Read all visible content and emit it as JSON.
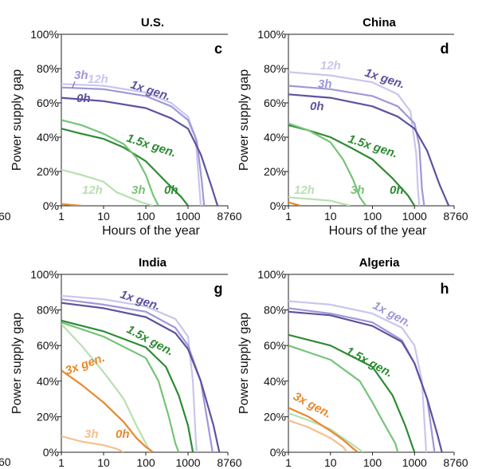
{
  "chart_data": [
    {
      "type": "line",
      "title": "U.S.",
      "panel_letter": "c",
      "xlabel": "Hours of the year",
      "ylabel": "Power supply gap",
      "x_scale": "log",
      "xlim": [
        1,
        8760
      ],
      "ylim": [
        0,
        100
      ],
      "x_ticks": [
        "1",
        "10",
        "100",
        "1000",
        "8760"
      ],
      "y_ticks": [
        "0%",
        "20%",
        "40%",
        "60%",
        "80%",
        "100%"
      ],
      "grid": false,
      "series": [
        {
          "name": "1x gen. 12h",
          "color": "#c9c6ec",
          "points": [
            [
              1,
              71
            ],
            [
              10,
              70
            ],
            [
              100,
              66
            ],
            [
              400,
              60
            ],
            [
              1000,
              52
            ],
            [
              1500,
              40
            ],
            [
              1800,
              15
            ],
            [
              2000,
              0
            ]
          ]
        },
        {
          "name": "1x gen. 3h",
          "color": "#9e98d8",
          "points": [
            [
              1,
              69
            ],
            [
              10,
              68
            ],
            [
              100,
              64
            ],
            [
              400,
              58
            ],
            [
              1000,
              50
            ],
            [
              1600,
              38
            ],
            [
              2100,
              15
            ],
            [
              2400,
              0
            ]
          ]
        },
        {
          "name": "1x gen. 0h",
          "color": "#5d539f",
          "points": [
            [
              1,
              63
            ],
            [
              10,
              61
            ],
            [
              100,
              57
            ],
            [
              400,
              51
            ],
            [
              1000,
              45
            ],
            [
              2000,
              30
            ],
            [
              3500,
              12
            ],
            [
              5000,
              0
            ]
          ]
        },
        {
          "name": "1.5x gen. 0h",
          "color": "#2e8b34",
          "points": [
            [
              1,
              45
            ],
            [
              3,
              42
            ],
            [
              10,
              39
            ],
            [
              30,
              34
            ],
            [
              100,
              26
            ],
            [
              300,
              14
            ],
            [
              700,
              5
            ],
            [
              1000,
              0
            ]
          ]
        },
        {
          "name": "1.5x gen. 3h",
          "color": "#76c477",
          "points": [
            [
              1,
              50
            ],
            [
              3,
              47
            ],
            [
              10,
              42
            ],
            [
              30,
              36
            ],
            [
              60,
              28
            ],
            [
              100,
              18
            ],
            [
              150,
              6
            ],
            [
              200,
              0
            ]
          ]
        },
        {
          "name": "1.5x gen. 12h",
          "color": "#b8e0b0",
          "points": [
            [
              1,
              21
            ],
            [
              3,
              18
            ],
            [
              10,
              14
            ],
            [
              20,
              8
            ],
            [
              40,
              5
            ],
            [
              80,
              2
            ],
            [
              150,
              0
            ]
          ]
        },
        {
          "name": "3x gen.",
          "color": "#e8892c",
          "points": [
            [
              1,
              1
            ],
            [
              3,
              0
            ]
          ]
        }
      ],
      "annotations": [
        "3h",
        "12h",
        "1x gen.",
        "0h",
        "1.5x gen.",
        "12h",
        "3h",
        "0h"
      ]
    },
    {
      "type": "line",
      "title": "China",
      "panel_letter": "d",
      "xlabel": "Hours of the year",
      "ylabel": "Power supply gap",
      "x_scale": "log",
      "xlim": [
        1,
        8760
      ],
      "ylim": [
        0,
        100
      ],
      "x_ticks": [
        "1",
        "10",
        "100",
        "1000",
        "8760"
      ],
      "y_ticks": [
        "0%",
        "20%",
        "40%",
        "60%",
        "80%",
        "100%"
      ],
      "grid": false,
      "series": [
        {
          "name": "1x gen. 12h",
          "color": "#c9c6ec",
          "points": [
            [
              1,
              78
            ],
            [
              10,
              76
            ],
            [
              100,
              72
            ],
            [
              400,
              65
            ],
            [
              800,
              55
            ],
            [
              1100,
              30
            ],
            [
              1200,
              10
            ],
            [
              1300,
              0
            ]
          ]
        },
        {
          "name": "1x gen. 3h",
          "color": "#9e98d8",
          "points": [
            [
              1,
              70
            ],
            [
              10,
              68
            ],
            [
              100,
              64
            ],
            [
              400,
              58
            ],
            [
              1000,
              48
            ],
            [
              1300,
              35
            ],
            [
              1500,
              10
            ],
            [
              1700,
              0
            ]
          ]
        },
        {
          "name": "1x gen. 0h",
          "color": "#5d539f",
          "points": [
            [
              1,
              65
            ],
            [
              10,
              63
            ],
            [
              100,
              58
            ],
            [
              400,
              52
            ],
            [
              1000,
              45
            ],
            [
              2000,
              32
            ],
            [
              4000,
              12
            ],
            [
              6500,
              0
            ]
          ]
        },
        {
          "name": "1.5x gen. 0h",
          "color": "#2e8b34",
          "points": [
            [
              1,
              47
            ],
            [
              3,
              44
            ],
            [
              10,
              40
            ],
            [
              30,
              34
            ],
            [
              100,
              27
            ],
            [
              300,
              16
            ],
            [
              700,
              6
            ],
            [
              1000,
              0
            ]
          ]
        },
        {
          "name": "1.5x gen. 3h",
          "color": "#76c477",
          "points": [
            [
              1,
              48
            ],
            [
              3,
              44
            ],
            [
              10,
              37
            ],
            [
              20,
              27
            ],
            [
              35,
              15
            ],
            [
              50,
              5
            ],
            [
              70,
              0
            ]
          ]
        },
        {
          "name": "1.5x gen. 12h",
          "color": "#b8e0b0",
          "points": [
            [
              1,
              5
            ],
            [
              3,
              4
            ],
            [
              10,
              3
            ],
            [
              20,
              1
            ],
            [
              30,
              0
            ]
          ]
        },
        {
          "name": "3x gen.",
          "color": "#e8892c",
          "points": [
            [
              1,
              2
            ],
            [
              2,
              0
            ]
          ]
        }
      ],
      "annotations": [
        "12h",
        "3h",
        "1x gen.",
        "0h",
        "1.5x gen.",
        "12h",
        "3h",
        "0h"
      ]
    },
    {
      "type": "line",
      "title": "India",
      "panel_letter": "g",
      "xlabel": "Hours of the year",
      "ylabel": "Power supply gap",
      "x_scale": "log",
      "xlim": [
        1,
        8760
      ],
      "ylim": [
        0,
        100
      ],
      "x_ticks": [
        "1",
        "10",
        "100",
        "1000",
        "8760"
      ],
      "y_ticks": [
        "0%",
        "20%",
        "40%",
        "60%",
        "80%",
        "100%"
      ],
      "grid": false,
      "series": [
        {
          "name": "1x gen. 12h",
          "color": "#c9c6ec",
          "points": [
            [
              1,
              88
            ],
            [
              10,
              86
            ],
            [
              100,
              82
            ],
            [
              500,
              75
            ],
            [
              1000,
              65
            ],
            [
              1300,
              40
            ],
            [
              1500,
              10
            ],
            [
              1600,
              0
            ]
          ]
        },
        {
          "name": "1x gen. 3h",
          "color": "#9e98d8",
          "points": [
            [
              1,
              86
            ],
            [
              10,
              83
            ],
            [
              100,
              79
            ],
            [
              500,
              70
            ],
            [
              1000,
              60
            ],
            [
              2000,
              40
            ],
            [
              3000,
              15
            ],
            [
              3800,
              0
            ]
          ]
        },
        {
          "name": "1x gen. 0h",
          "color": "#5d539f",
          "points": [
            [
              1,
              84
            ],
            [
              10,
              81
            ],
            [
              100,
              76
            ],
            [
              500,
              67
            ],
            [
              1000,
              58
            ],
            [
              2000,
              40
            ],
            [
              4000,
              15
            ],
            [
              5500,
              0
            ]
          ]
        },
        {
          "name": "1.5x gen. 0h",
          "color": "#2e8b34",
          "points": [
            [
              1,
              74
            ],
            [
              10,
              68
            ],
            [
              100,
              59
            ],
            [
              300,
              48
            ],
            [
              600,
              32
            ],
            [
              1000,
              15
            ],
            [
              1300,
              0
            ]
          ]
        },
        {
          "name": "1.5x gen. 3h",
          "color": "#76c477",
          "points": [
            [
              1,
              73
            ],
            [
              10,
              65
            ],
            [
              100,
              53
            ],
            [
              200,
              40
            ],
            [
              350,
              20
            ],
            [
              500,
              5
            ],
            [
              600,
              0
            ]
          ]
        },
        {
          "name": "1.5x gen. 12h",
          "color": "#b8e0b0",
          "points": [
            [
              1,
              72
            ],
            [
              3,
              60
            ],
            [
              10,
              45
            ],
            [
              30,
              30
            ],
            [
              60,
              15
            ],
            [
              100,
              5
            ],
            [
              130,
              0
            ]
          ]
        },
        {
          "name": "3x gen. 0h",
          "color": "#e8892c",
          "points": [
            [
              1,
              46
            ],
            [
              3,
              38
            ],
            [
              10,
              28
            ],
            [
              30,
              17
            ],
            [
              60,
              8
            ],
            [
              100,
              3
            ],
            [
              150,
              0
            ]
          ]
        },
        {
          "name": "3x gen. 3h",
          "color": "#f5c08c",
          "points": [
            [
              1,
              9
            ],
            [
              3,
              6
            ],
            [
              10,
              4
            ],
            [
              20,
              2
            ],
            [
              30,
              0
            ]
          ]
        }
      ],
      "annotations": [
        "1x gen.",
        "1.5x gen.",
        "3x gen.",
        "3h",
        "0h"
      ]
    },
    {
      "type": "line",
      "title": "Algeria",
      "panel_letter": "h",
      "xlabel": "Hours of the year",
      "ylabel": "Power supply gap",
      "x_scale": "log",
      "xlim": [
        1,
        8760
      ],
      "ylim": [
        0,
        100
      ],
      "x_ticks": [
        "1",
        "10",
        "100",
        "1000",
        "8760"
      ],
      "y_ticks": [
        "0%",
        "20%",
        "40%",
        "60%",
        "80%",
        "100%"
      ],
      "grid": false,
      "series": [
        {
          "name": "1x gen. 12h",
          "color": "#c9c6ec",
          "points": [
            [
              1,
              85
            ],
            [
              10,
              83
            ],
            [
              100,
              78
            ],
            [
              500,
              70
            ],
            [
              1000,
              60
            ],
            [
              1500,
              40
            ],
            [
              1800,
              10
            ],
            [
              1900,
              0
            ]
          ]
        },
        {
          "name": "1x gen. 3h",
          "color": "#9e98d8",
          "points": [
            [
              1,
              81
            ],
            [
              10,
              78
            ],
            [
              100,
              73
            ],
            [
              500,
              63
            ],
            [
              1000,
              50
            ],
            [
              2000,
              30
            ],
            [
              2800,
              5
            ],
            [
              3000,
              0
            ]
          ]
        },
        {
          "name": "1x gen. 0h",
          "color": "#5d539f",
          "points": [
            [
              1,
              79
            ],
            [
              10,
              77
            ],
            [
              100,
              71
            ],
            [
              500,
              62
            ],
            [
              1000,
              50
            ],
            [
              2000,
              30
            ],
            [
              3500,
              10
            ],
            [
              4500,
              0
            ]
          ]
        },
        {
          "name": "1.5x gen. 0h",
          "color": "#2e8b34",
          "points": [
            [
              1,
              66
            ],
            [
              10,
              60
            ],
            [
              100,
              48
            ],
            [
              300,
              32
            ],
            [
              600,
              15
            ],
            [
              900,
              3
            ],
            [
              1000,
              0
            ]
          ]
        },
        {
          "name": "1.5x gen. 3h",
          "color": "#76c477",
          "points": [
            [
              1,
              60
            ],
            [
              10,
              52
            ],
            [
              50,
              40
            ],
            [
              100,
              28
            ],
            [
              200,
              15
            ],
            [
              350,
              5
            ],
            [
              400,
              0
            ]
          ]
        },
        {
          "name": "1.5x gen. 12h",
          "color": "#b8e0b0",
          "points": [
            [
              1,
              22
            ],
            [
              3,
              18
            ],
            [
              10,
              13
            ],
            [
              20,
              8
            ],
            [
              40,
              3
            ],
            [
              60,
              0
            ]
          ]
        },
        {
          "name": "3x gen. 0h",
          "color": "#e8892c",
          "points": [
            [
              1,
              25
            ],
            [
              3,
              20
            ],
            [
              10,
              12
            ],
            [
              20,
              7
            ],
            [
              35,
              2
            ],
            [
              45,
              0
            ]
          ]
        },
        {
          "name": "3x gen. 3h",
          "color": "#f5c08c",
          "points": [
            [
              1,
              18
            ],
            [
              3,
              14
            ],
            [
              10,
              8
            ],
            [
              20,
              3
            ],
            [
              25,
              0
            ]
          ]
        }
      ],
      "annotations": [
        "1x gen.",
        "1.5x gen.",
        "3x gen."
      ]
    }
  ],
  "left_edge_fragments": [
    "60",
    "60"
  ]
}
